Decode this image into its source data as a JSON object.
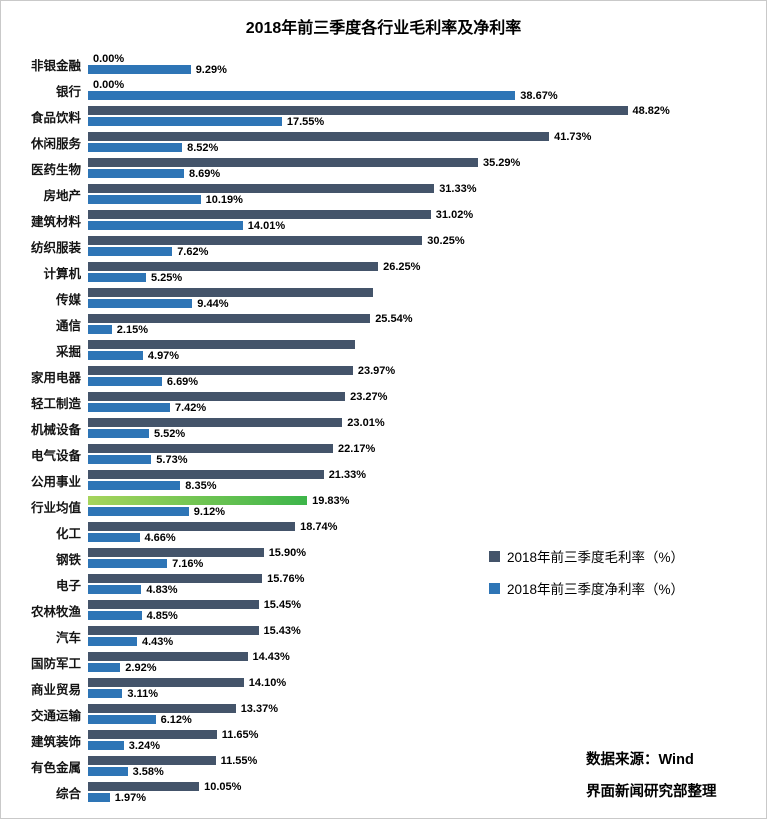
{
  "title": "2018年前三季度各行业毛利率及净利率",
  "legend": [
    {
      "label": "2018年前三季度毛利率（%）",
      "color": "#44546A"
    },
    {
      "label": "2018年前三季度净利率（%）",
      "color": "#2E75B6"
    }
  ],
  "source": {
    "line1": "数据来源：Wind",
    "line2": "界面新闻研究部整理"
  },
  "colors": {
    "gross_bar": "#44546A",
    "net_bar": "#2E75B6",
    "highlight_bar_start": "#A6D45C",
    "highlight_bar_end": "#3DB54A",
    "background": "#FFFFFF",
    "border": "#C9C9C9"
  },
  "chart_data": {
    "type": "bar",
    "orientation": "horizontal",
    "title": "2018年前三季度各行业毛利率及净利率",
    "xlim": [
      0,
      62
    ],
    "grid": false,
    "legend_position": "center-right",
    "highlight_category": "行业均值",
    "highlight_index": 17,
    "categories": [
      "非银金融",
      "银行",
      "食品饮料",
      "休闲服务",
      "医药生物",
      "房地产",
      "建筑材料",
      "纺织服装",
      "计算机",
      "传媒",
      "通信",
      "采掘",
      "家用电器",
      "轻工制造",
      "机械设备",
      "电气设备",
      "公用事业",
      "行业均值",
      "化工",
      "钢铁",
      "电子",
      "农林牧渔",
      "汽车",
      "国防军工",
      "商业贸易",
      "交通运输",
      "建筑装饰",
      "有色金属",
      "综合"
    ],
    "series": [
      {
        "name": "2018年前三季度毛利率（%）",
        "color_key": "gross",
        "values": [
          0.0,
          0.0,
          48.82,
          41.73,
          35.29,
          31.33,
          31.02,
          30.25,
          26.25,
          25.8,
          25.54,
          24.2,
          23.97,
          23.27,
          23.01,
          22.17,
          21.33,
          19.83,
          18.74,
          15.9,
          15.76,
          15.45,
          15.43,
          14.43,
          14.1,
          13.37,
          11.65,
          11.55,
          10.05
        ],
        "labels": [
          "0.00%",
          "0.00%",
          "48.82%",
          "41.73%",
          "35.29%",
          "31.33%",
          "31.02%",
          "30.25%",
          "26.25%",
          "",
          "25.54%",
          "",
          "23.97%",
          "23.27%",
          "23.01%",
          "22.17%",
          "21.33%",
          "19.83%",
          "18.74%",
          "15.90%",
          "15.76%",
          "15.45%",
          "15.43%",
          "14.43%",
          "14.10%",
          "13.37%",
          "11.65%",
          "11.55%",
          "10.05%"
        ],
        "estimated_indices": [
          9,
          11
        ]
      },
      {
        "name": "2018年前三季度净利率（%）",
        "color_key": "net",
        "values": [
          9.29,
          38.67,
          17.55,
          8.52,
          8.69,
          10.19,
          14.01,
          7.62,
          5.25,
          9.44,
          2.15,
          4.97,
          6.69,
          7.42,
          5.52,
          5.73,
          8.35,
          9.12,
          4.66,
          7.16,
          4.83,
          4.85,
          4.43,
          2.92,
          3.11,
          6.12,
          3.24,
          3.58,
          1.97
        ],
        "labels": [
          "9.29%",
          "38.67%",
          "17.55%",
          "8.52%",
          "8.69%",
          "10.19%",
          "14.01%",
          "7.62%",
          "5.25%",
          "9.44%",
          "2.15%",
          "4.97%",
          "6.69%",
          "7.42%",
          "5.52%",
          "5.73%",
          "8.35%",
          "9.12%",
          "4.66%",
          "7.16%",
          "4.83%",
          "4.85%",
          "4.43%",
          "2.92%",
          "3.11%",
          "6.12%",
          "3.24%",
          "3.58%",
          "1.97%"
        ]
      }
    ]
  }
}
